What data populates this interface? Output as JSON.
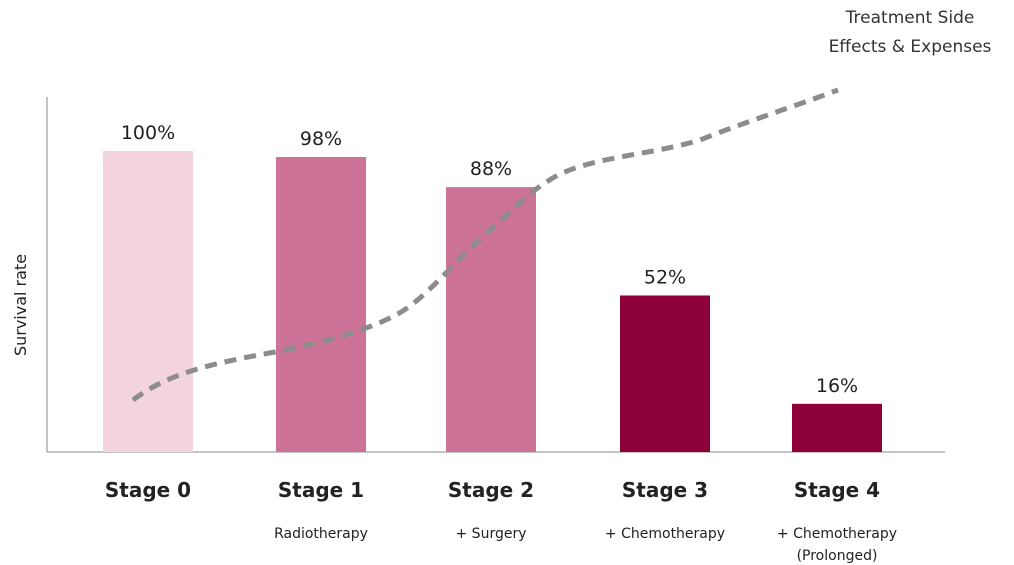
{
  "chart_data": {
    "type": "bar",
    "ylabel": "Survival rate",
    "ylim": [
      0,
      100
    ],
    "categories": [
      "Stage 0",
      "Stage 1",
      "Stage 2",
      "Stage 3",
      "Stage 4"
    ],
    "treatments": [
      "",
      "Radiotherapy",
      "+ Surgery",
      "+ Chemotherapy",
      "+ Chemotherapy\n(Prolonged)"
    ],
    "values": [
      100,
      98,
      88,
      52,
      16
    ],
    "value_labels": [
      "100%",
      "98%",
      "88%",
      "52%",
      "16%"
    ],
    "bar_colors": [
      "#f4d3e1",
      "#cc7397",
      "#cc7397",
      "#8e0038",
      "#8e0038"
    ],
    "trend_line": {
      "label_line1": "Treatment Side",
      "label_line2": "Effects & Expenses",
      "style": "dashed",
      "color": "#8c8c8c"
    }
  }
}
